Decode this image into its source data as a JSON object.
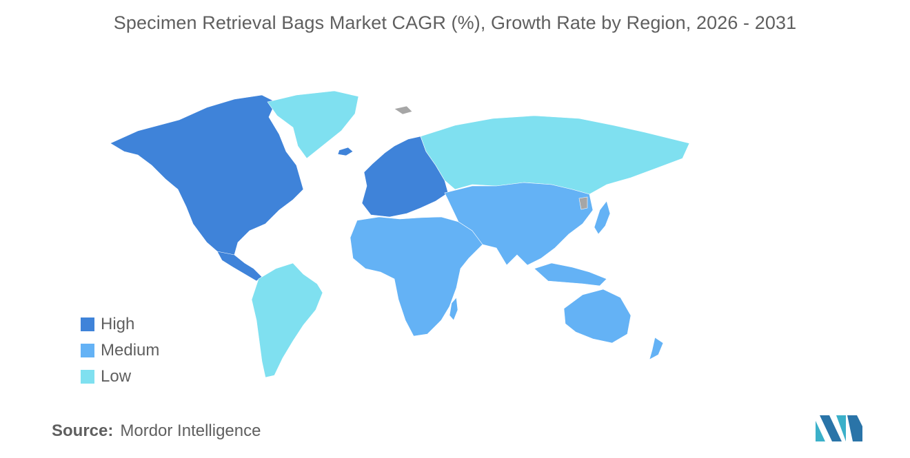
{
  "title": "Specimen Retrieval Bags Market CAGR (%), Growth Rate by Region, 2026 - 2031",
  "legend": [
    {
      "label": "High",
      "color": "#3f83d9"
    },
    {
      "label": "Medium",
      "color": "#64b2f5"
    },
    {
      "label": "Low",
      "color": "#7fe0f0"
    }
  ],
  "no_data_color": "#a6a6a6",
  "regions": [
    {
      "name": "North America",
      "level": "High"
    },
    {
      "name": "Europe",
      "level": "High"
    },
    {
      "name": "Asia Pacific",
      "level": "Medium"
    },
    {
      "name": "Middle East and Africa",
      "level": "Medium"
    },
    {
      "name": "South America",
      "level": "Low"
    },
    {
      "name": "Greenland",
      "level": "Low"
    },
    {
      "name": "Russia",
      "level": "Low"
    }
  ],
  "source": {
    "label": "Source:",
    "value": "Mordor Intelligence"
  },
  "logo_icon": "mordor-intelligence-logo-icon"
}
